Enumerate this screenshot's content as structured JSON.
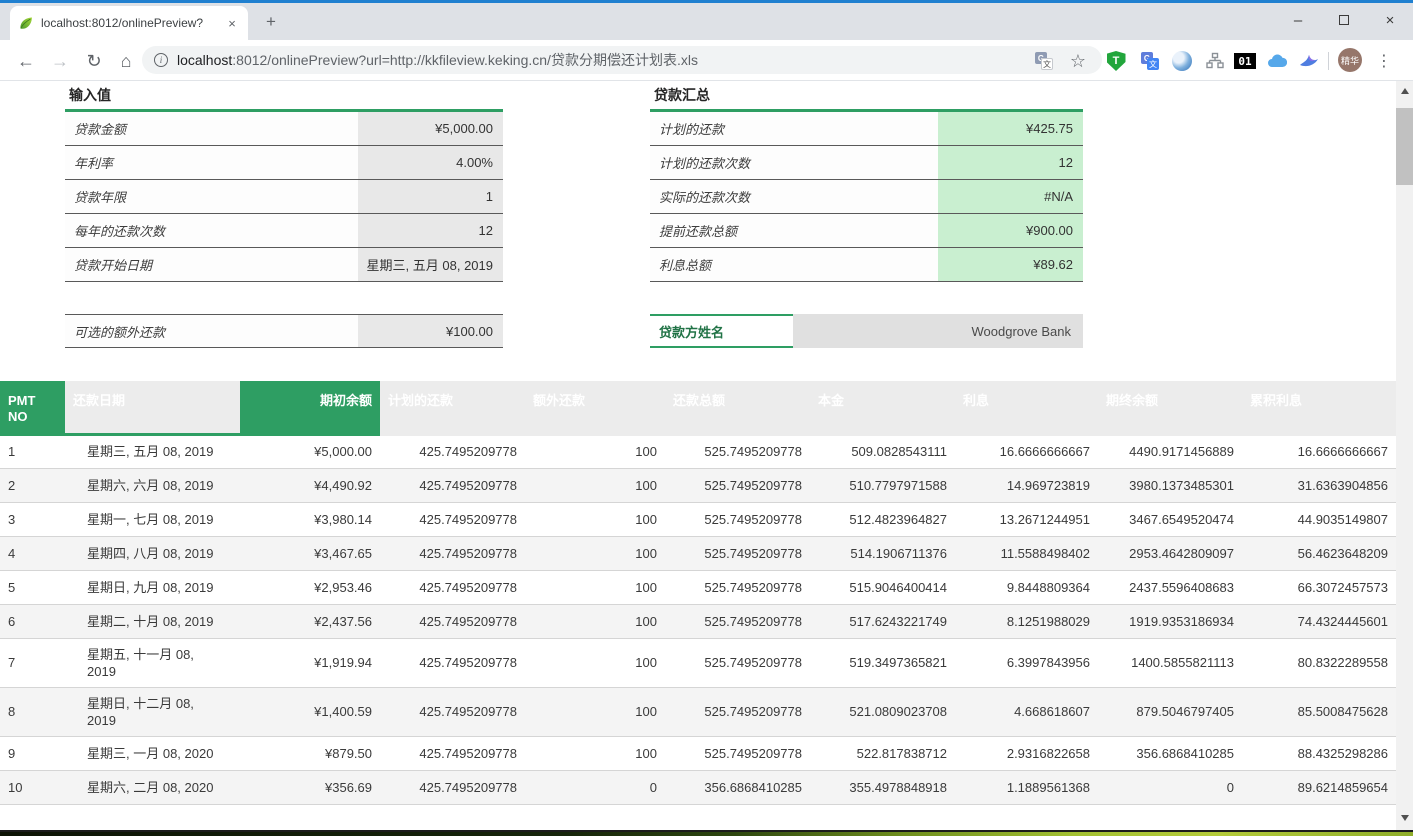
{
  "browser": {
    "tab_title": "localhost:8012/onlinePreview?",
    "url_host": "localhost",
    "url_rest": ":8012/onlinePreview?url=http://kkfileview.keking.cn/贷款分期偿还计划表.xls",
    "avatar_label": "精华",
    "ext_binary_label": "01",
    "gt_back_letter": "G",
    "gt_front_letter": "文",
    "shield_letter": "T"
  },
  "icons": {
    "back": "←",
    "forward": "→",
    "reload": "↻",
    "home": "⌂",
    "info": "i",
    "star": "☆",
    "menu_dots": "⋮",
    "tab_close": "×",
    "new_tab": "+",
    "minimize": "–",
    "close": "×"
  },
  "input_section": {
    "title": "输入值",
    "rows": [
      {
        "label": "贷款金额",
        "value": "¥5,000.00"
      },
      {
        "label": "年利率",
        "value": "4.00%"
      },
      {
        "label": "贷款年限",
        "value": "1"
      },
      {
        "label": "每年的还款次数",
        "value": "12"
      },
      {
        "label": "贷款开始日期",
        "value": "星期三, 五月 08, 2019"
      }
    ],
    "extra": {
      "label": "可选的额外还款",
      "value": "¥100.00"
    }
  },
  "summary_section": {
    "title": "贷款汇总",
    "rows": [
      {
        "label": "计划的还款",
        "value": "¥425.75"
      },
      {
        "label": "计划的还款次数",
        "value": "12"
      },
      {
        "label": "实际的还款次数",
        "value": "#N/A"
      },
      {
        "label": "提前还款总额",
        "value": "¥900.00"
      },
      {
        "label": "利息总额",
        "value": "¥89.62"
      }
    ],
    "lender": {
      "label": "贷款方姓名",
      "value": "Woodgrove Bank"
    }
  },
  "schedule": {
    "headers": [
      "PMT NO",
      "还款日期",
      "期初余额",
      "计划的还款",
      "额外还款",
      "还款总额",
      "本金",
      "利息",
      "期终余额",
      "累积利息"
    ],
    "rows": [
      [
        "1",
        "星期三, 五月 08, 2019",
        "¥5,000.00",
        "425.7495209778",
        "100",
        "525.7495209778",
        "509.0828543111",
        "16.6666666667",
        "4490.9171456889",
        "16.6666666667"
      ],
      [
        "2",
        "星期六, 六月 08, 2019",
        "¥4,490.92",
        "425.7495209778",
        "100",
        "525.7495209778",
        "510.7797971588",
        "14.969723819",
        "3980.1373485301",
        "31.6363904856"
      ],
      [
        "3",
        "星期一, 七月 08, 2019",
        "¥3,980.14",
        "425.7495209778",
        "100",
        "525.7495209778",
        "512.4823964827",
        "13.2671244951",
        "3467.6549520474",
        "44.9035149807"
      ],
      [
        "4",
        "星期四, 八月 08, 2019",
        "¥3,467.65",
        "425.7495209778",
        "100",
        "525.7495209778",
        "514.1906711376",
        "11.5588498402",
        "2953.4642809097",
        "56.4623648209"
      ],
      [
        "5",
        "星期日, 九月 08, 2019",
        "¥2,953.46",
        "425.7495209778",
        "100",
        "525.7495209778",
        "515.9046400414",
        "9.8448809364",
        "2437.5596408683",
        "66.3072457573"
      ],
      [
        "6",
        "星期二, 十月 08, 2019",
        "¥2,437.56",
        "425.7495209778",
        "100",
        "525.7495209778",
        "517.6243221749",
        "8.1251988029",
        "1919.9353186934",
        "74.4324445601"
      ],
      [
        "7",
        "星期五, 十一月 08,\n2019",
        "¥1,919.94",
        "425.7495209778",
        "100",
        "525.7495209778",
        "519.3497365821",
        "6.3997843956",
        "1400.5855821113",
        "80.8322289558"
      ],
      [
        "8",
        "星期日, 十二月 08,\n2019",
        "¥1,400.59",
        "425.7495209778",
        "100",
        "525.7495209778",
        "521.0809023708",
        "4.668618607",
        "879.5046797405",
        "85.5008475628"
      ],
      [
        "9",
        "星期三, 一月 08, 2020",
        "¥879.50",
        "425.7495209778",
        "100",
        "525.7495209778",
        "522.817838712",
        "2.9316822658",
        "356.6868410285",
        "88.4325298286"
      ],
      [
        "10",
        "星期六, 二月 08, 2020",
        "¥356.69",
        "425.7495209778",
        "0",
        "356.6868410285",
        "355.4978848918",
        "1.1889561368",
        "0",
        "89.6214859654"
      ]
    ]
  },
  "colors": {
    "excel_green": "#2e9e63",
    "lender_text_green": "#217346",
    "summary_value_bg": "#c9efd0",
    "input_value_bg": "#e8e8e8",
    "accent_blue": "#2080d0"
  }
}
